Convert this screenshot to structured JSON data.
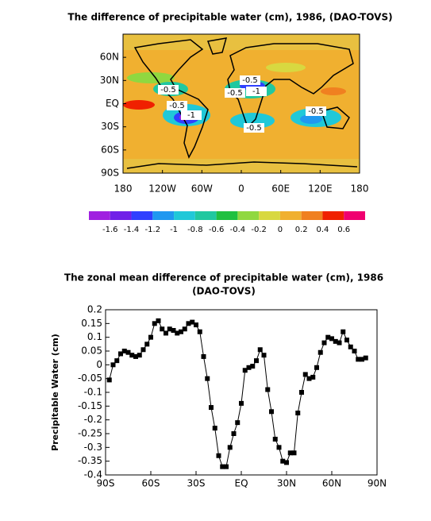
{
  "chart_data": [
    {
      "type": "map",
      "title": "The difference of precipitable water (cm), 1986, (DAO-TOVS)",
      "xlim": [
        -180,
        180
      ],
      "ylim": [
        -90,
        90
      ],
      "xticks": [
        {
          "value": -180,
          "label": "180"
        },
        {
          "value": -120,
          "label": "120W"
        },
        {
          "value": -60,
          "label": "60W"
        },
        {
          "value": 0,
          "label": "0"
        },
        {
          "value": 60,
          "label": "60E"
        },
        {
          "value": 120,
          "label": "120E"
        },
        {
          "value": 180,
          "label": "180"
        }
      ],
      "yticks": [
        {
          "value": 60,
          "label": "60N"
        },
        {
          "value": 30,
          "label": "30N"
        },
        {
          "value": 0,
          "label": "EQ"
        },
        {
          "value": -30,
          "label": "30S"
        },
        {
          "value": -60,
          "label": "60S"
        },
        {
          "value": -90,
          "label": "90S"
        }
      ],
      "annotations": [
        "-0.5",
        "-0.5",
        "-0.5",
        "-1",
        "-0.5",
        "-1",
        "-0.5",
        "-0.5"
      ],
      "colorbar": {
        "colors": [
          "#a020e0",
          "#7020e8",
          "#3040ff",
          "#2098f0",
          "#20c8d8",
          "#20c8a0",
          "#20c040",
          "#90d840",
          "#d8d840",
          "#f0b030",
          "#f08020",
          "#f02000",
          "#f00070"
        ],
        "ticks": [
          -1.6,
          -1.4,
          -1.2,
          -1,
          -0.8,
          -0.6,
          -0.4,
          -0.2,
          0,
          0.2,
          0.4,
          0.6
        ]
      }
    },
    {
      "type": "line",
      "title": "The zonal mean difference of precipitable water (cm), 1986",
      "subtitle": "(DAO-TOVS)",
      "y_label": "Precipitable Water (cm)",
      "color": "#000000",
      "xlim": [
        -90,
        90
      ],
      "ylim": [
        -0.4,
        0.2
      ],
      "xticks": [
        {
          "value": -90,
          "label": "90S"
        },
        {
          "value": -60,
          "label": "60S"
        },
        {
          "value": -30,
          "label": "30S"
        },
        {
          "value": 0,
          "label": "EQ"
        },
        {
          "value": 30,
          "label": "30N"
        },
        {
          "value": 60,
          "label": "60N"
        },
        {
          "value": 90,
          "label": "90N"
        }
      ],
      "yticks": [
        0.2,
        0.15,
        0.1,
        0.05,
        0,
        -0.05,
        -0.1,
        -0.15,
        -0.2,
        -0.25,
        -0.3,
        -0.35,
        -0.4
      ],
      "x": [
        -87.5,
        -85,
        -82.5,
        -80,
        -77.5,
        -75,
        -72.5,
        -70,
        -67.5,
        -65,
        -62.5,
        -60,
        -57.5,
        -55,
        -52.5,
        -50,
        -47.5,
        -45,
        -42.5,
        -40,
        -37.5,
        -35,
        -32.5,
        -30,
        -27.5,
        -25,
        -22.5,
        -20,
        -17.5,
        -15,
        -12.5,
        -10,
        -7.5,
        -5,
        -2.5,
        0,
        2.5,
        5,
        7.5,
        10,
        12.5,
        15,
        17.5,
        20,
        22.5,
        25,
        27.5,
        30,
        32.5,
        35,
        37.5,
        40,
        42.5,
        45,
        47.5,
        50,
        52.5,
        55,
        57.5,
        60,
        62.5,
        65,
        67.5,
        70,
        72.5,
        75,
        77.5,
        80,
        82.5
      ],
      "values": [
        -0.055,
        0,
        0.015,
        0.04,
        0.05,
        0.045,
        0.035,
        0.03,
        0.035,
        0.055,
        0.075,
        0.1,
        0.15,
        0.16,
        0.13,
        0.115,
        0.13,
        0.125,
        0.115,
        0.12,
        0.13,
        0.15,
        0.155,
        0.145,
        0.12,
        0.03,
        -0.05,
        -0.155,
        -0.23,
        -0.33,
        -0.37,
        -0.37,
        -0.3,
        -0.25,
        -0.21,
        -0.14,
        -0.02,
        -0.01,
        -0.005,
        0.015,
        0.055,
        0.035,
        -0.09,
        -0.17,
        -0.27,
        -0.3,
        -0.35,
        -0.355,
        -0.32,
        -0.32,
        -0.175,
        -0.1,
        -0.035,
        -0.05,
        -0.045,
        -0.01,
        0.045,
        0.08,
        0.1,
        0.095,
        0.085,
        0.08,
        0.12,
        0.09,
        0.065,
        0.05,
        0.02,
        0.02,
        0.025
      ]
    }
  ]
}
